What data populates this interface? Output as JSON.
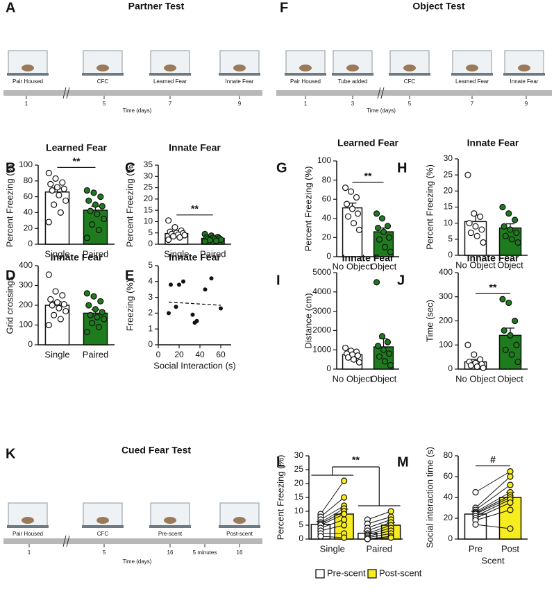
{
  "chart_data": [
    {
      "panel": "B",
      "type": "bar",
      "title": "Learned Fear",
      "ylabel": "Percent Freezing (%)",
      "categories": [
        "Single",
        "Paired"
      ],
      "colors": [
        "#ffffff",
        "#1e7b1e"
      ],
      "values": [
        66,
        43
      ],
      "errors": [
        5,
        5
      ],
      "points": [
        [
          90,
          83,
          78,
          76,
          72,
          70,
          68,
          62,
          55,
          50,
          40,
          28
        ],
        [
          68,
          65,
          60,
          55,
          50,
          48,
          42,
          38,
          32,
          25,
          18,
          8
        ]
      ],
      "ylim": [
        0,
        100
      ],
      "yticks": [
        0,
        20,
        40,
        60,
        80,
        100
      ],
      "significance": "**"
    },
    {
      "panel": "C",
      "type": "bar",
      "title": "Innate Fear",
      "ylabel": "Percent Freezing (%)",
      "categories": [
        "Single",
        "Paired"
      ],
      "colors": [
        "#ffffff",
        "#1e7b1e"
      ],
      "values": [
        4.7,
        2.6
      ],
      "errors": [
        0.6,
        0.3
      ],
      "points": [
        [
          10.5,
          7.5,
          6,
          5.5,
          5,
          4.8,
          4.5,
          4.2,
          4,
          3.5,
          3,
          2
        ],
        [
          4.5,
          3.8,
          3.2,
          3,
          2.8,
          2.6,
          2.4,
          2.2,
          2,
          1.8,
          1.5,
          1.2
        ]
      ],
      "ylim": [
        0,
        35
      ],
      "yticks": [
        0,
        5,
        10,
        15,
        20,
        25,
        30,
        35
      ],
      "significance": "**"
    },
    {
      "panel": "D",
      "type": "bar",
      "title": "Innate Fear",
      "ylabel": "Grid crossings",
      "categories": [
        "Single",
        "Paired"
      ],
      "colors": [
        "#ffffff",
        "#1e7b1e"
      ],
      "values": [
        200,
        160
      ],
      "errors": [
        18,
        17
      ],
      "points": [
        [
          355,
          270,
          250,
          230,
          215,
          205,
          200,
          185,
          170,
          150,
          130,
          100
        ],
        [
          260,
          245,
          220,
          200,
          180,
          165,
          150,
          140,
          130,
          110,
          90,
          65
        ]
      ],
      "ylim": [
        0,
        400
      ],
      "yticks": [
        0,
        100,
        200,
        300,
        400
      ]
    },
    {
      "panel": "E",
      "type": "scatter",
      "title": "Innate Fear",
      "ylabel": "Freezing (%)",
      "xlabel": "Social Interaction (s)",
      "x": [
        10,
        12,
        17,
        20,
        24,
        33,
        35,
        37,
        45,
        51,
        60
      ],
      "values": [
        2.0,
        3.8,
        2.4,
        3.8,
        4.0,
        1.9,
        1.4,
        1.5,
        3.5,
        4.2,
        2.3
      ],
      "trend": {
        "x": [
          10,
          60
        ],
        "y": [
          2.7,
          2.5
        ]
      },
      "xlim": [
        0,
        70
      ],
      "xticks": [
        0,
        20,
        40,
        60
      ],
      "ylim": [
        0,
        5
      ],
      "yticks": [
        0,
        1,
        2,
        3,
        4,
        5
      ]
    },
    {
      "panel": "G",
      "type": "bar",
      "title": "Learned Fear",
      "ylabel": "Percent Freezing (%)",
      "categories": [
        "No Object",
        "Object"
      ],
      "colors": [
        "#ffffff",
        "#1e7b1e"
      ],
      "values": [
        51,
        26
      ],
      "errors": [
        5,
        4
      ],
      "points": [
        [
          72,
          68,
          62,
          55,
          50,
          45,
          42,
          35,
          28
        ],
        [
          45,
          40,
          32,
          30,
          26,
          20,
          18,
          10,
          5
        ]
      ],
      "ylim": [
        0,
        100
      ],
      "yticks": [
        0,
        20,
        40,
        60,
        80,
        100
      ],
      "significance": "**"
    },
    {
      "panel": "H",
      "type": "bar",
      "title": "Innate Fear",
      "ylabel": "Percent Freezing (%)",
      "categories": [
        "No Object",
        "Object"
      ],
      "colors": [
        "#ffffff",
        "#1e7b1e"
      ],
      "values": [
        10.5,
        8.5
      ],
      "errors": [
        2,
        1.3
      ],
      "points": [
        [
          25,
          13,
          12,
          10,
          9,
          8,
          7,
          6,
          4
        ],
        [
          15,
          13,
          11,
          9,
          8,
          7,
          6,
          5,
          4
        ]
      ],
      "ylim": [
        0,
        30
      ],
      "yticks": [
        0,
        5,
        10,
        15,
        20,
        25,
        30
      ]
    },
    {
      "panel": "I",
      "type": "bar",
      "title": "Innate Fear",
      "ylabel": "Distance (cm)",
      "categories": [
        "No Object",
        "Object"
      ],
      "colors": [
        "#ffffff",
        "#1e7b1e"
      ],
      "values": [
        750,
        1150
      ],
      "errors": [
        90,
        420
      ],
      "points": [
        [
          1100,
          950,
          900,
          800,
          750,
          700,
          600,
          500,
          350
        ],
        [
          4500,
          1700,
          1400,
          1200,
          1000,
          800,
          650,
          400,
          200
        ]
      ],
      "ylim": [
        0,
        5000
      ],
      "yticks": [
        0,
        1000,
        2000,
        3000,
        4000,
        5000
      ]
    },
    {
      "panel": "J",
      "type": "bar",
      "title": "Innate Fear",
      "ylabel": "Time (sec)",
      "categories": [
        "No Object",
        "Object"
      ],
      "colors": [
        "#ffffff",
        "#1e7b1e"
      ],
      "values": [
        30,
        140
      ],
      "errors": [
        10,
        30
      ],
      "points": [
        [
          100,
          60,
          40,
          30,
          25,
          20,
          15,
          10,
          5
        ],
        [
          290,
          275,
          200,
          160,
          140,
          100,
          80,
          60,
          30
        ]
      ],
      "ylim": [
        0,
        400
      ],
      "yticks": [
        0,
        100,
        200,
        300,
        400
      ],
      "significance": "**"
    },
    {
      "panel": "L",
      "type": "bar",
      "ylabel": "Percent Freezing (%)",
      "categories": [
        "Single",
        "Paired"
      ],
      "paired": true,
      "series": [
        {
          "name": "Pre-scent",
          "color": "#ffffff",
          "values": [
            5.3,
            2.1
          ],
          "errors": [
            1,
            0.8
          ],
          "points": [
            [
              9,
              8,
              7,
              6,
              5.5,
              5,
              4,
              3,
              2,
              1
            ],
            [
              7,
              5.5,
              4,
              3,
              2,
              1.5,
              1,
              0.5,
              0,
              0
            ]
          ]
        },
        {
          "name": "Post-scent",
          "color": "#f7ec1e",
          "values": [
            9,
            5
          ],
          "errors": [
            1.8,
            0.9
          ],
          "points": [
            [
              21,
              15,
              12,
              11,
              10,
              9,
              7,
              5,
              2,
              0.5
            ],
            [
              10,
              8,
              7,
              6,
              5,
              4,
              3,
              2,
              1,
              0.5
            ]
          ]
        }
      ],
      "ylim": [
        0,
        30
      ],
      "yticks": [
        0,
        5,
        10,
        15,
        20,
        25,
        30
      ],
      "significance": "**"
    },
    {
      "panel": "M",
      "type": "bar",
      "ylabel": "Social interaction time (s)",
      "xlabel": "Scent",
      "categories": [
        "Pre",
        "Post"
      ],
      "colors": [
        "#ffffff",
        "#f7ec1e"
      ],
      "paired": true,
      "values": [
        24,
        40
      ],
      "errors": [
        2.5,
        5
      ],
      "points": [
        [
          45,
          30,
          28,
          26,
          25,
          24,
          22,
          20,
          18,
          14
        ],
        [
          65,
          60,
          52,
          45,
          42,
          40,
          38,
          35,
          28,
          10
        ]
      ],
      "ylim": [
        0,
        80
      ],
      "yticks": [
        0,
        20,
        40,
        60,
        80
      ],
      "significance": "#"
    }
  ],
  "diagrams": [
    {
      "panel": "A",
      "title": "Partner Test",
      "stages": [
        "Pair Housed",
        "CFC",
        "Learned Fear",
        "Innate Fear"
      ],
      "days": [
        "1",
        "5",
        "7",
        "9"
      ],
      "axis_label": "Time (days)"
    },
    {
      "panel": "F",
      "title": "Object Test",
      "stages": [
        "Pair Housed",
        "Tube added",
        "CFC",
        "Learned Fear",
        "Innate Fear"
      ],
      "days": [
        "1",
        "3",
        "5",
        "7",
        "9"
      ],
      "axis_label": "Time (days)"
    },
    {
      "panel": "K",
      "title": "Cued Fear Test",
      "stages": [
        "Pair Housed",
        "CFC",
        "Pre-scent",
        "Post-scent"
      ],
      "days": [
        "1",
        "5",
        "16",
        "5 minutes",
        "16"
      ],
      "axis_label": "Time (days)"
    }
  ]
}
